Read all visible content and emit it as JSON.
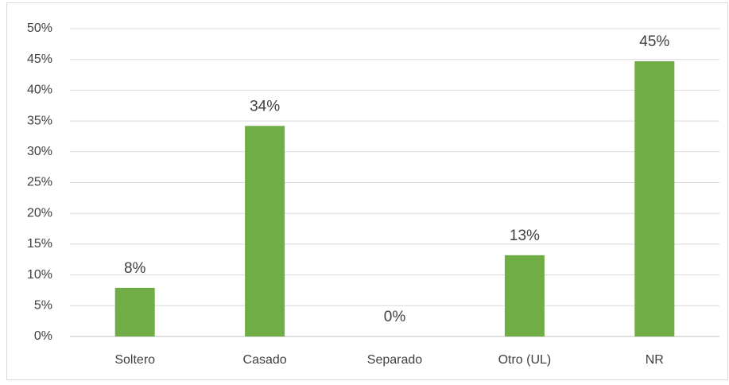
{
  "chart_data": {
    "type": "bar",
    "categories": [
      "Soltero",
      "Casado",
      "Separado",
      "Otro  (UL)",
      "NR"
    ],
    "values": [
      7.9,
      34.2,
      0,
      13.2,
      44.7
    ],
    "value_labels": [
      "8%",
      "34%",
      "0%",
      "13%",
      "45%"
    ],
    "color": "#70ad47",
    "ylim": [
      0,
      50
    ],
    "yticks": [
      {
        "value": 0,
        "label": "0%"
      },
      {
        "value": 5,
        "label": "5%"
      },
      {
        "value": 10,
        "label": "10%"
      },
      {
        "value": 15,
        "label": "15%"
      },
      {
        "value": 20,
        "label": "20%"
      },
      {
        "value": 25,
        "label": "25%"
      },
      {
        "value": 30,
        "label": "30%"
      },
      {
        "value": 35,
        "label": "35%"
      },
      {
        "value": 40,
        "label": "40%"
      },
      {
        "value": 45,
        "label": "45%"
      },
      {
        "value": 50,
        "label": "50%"
      }
    ],
    "grid": true
  }
}
